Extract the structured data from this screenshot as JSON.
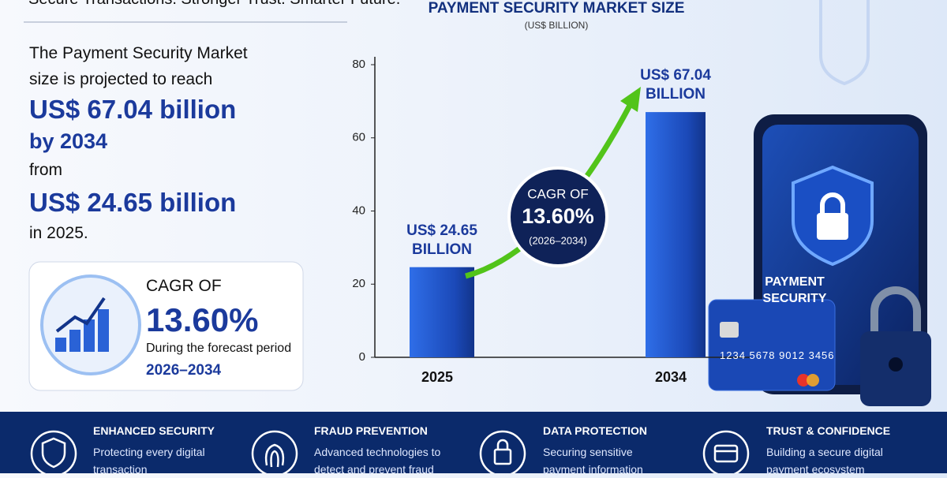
{
  "header": {
    "tagline": "Secure Transactions. Stronger Trust. Smarter Future."
  },
  "summary": {
    "intro": "The Payment Security Market size is projected to reach",
    "target": "US$ 67.04 billion",
    "target_year": "by 2034",
    "from": "from",
    "base": "US$ 24.65 billion",
    "base_year": "in 2025."
  },
  "cagr_box": {
    "label": "CAGR OF",
    "value": "13.60%",
    "note": "During the forecast period",
    "period": "2026–2034"
  },
  "chart_data": {
    "type": "bar",
    "title": "PAYMENT SECURITY MARKET SIZE",
    "subtitle": "(US$ BILLION)",
    "categories": [
      "2025",
      "2034"
    ],
    "values": [
      24.65,
      67.04
    ],
    "value_labels": [
      "US$ 24.65 BILLION",
      "US$ 67.04 BILLION"
    ],
    "color": "#1f4fc4",
    "ylim": [
      0,
      80
    ],
    "yticks": [
      0,
      20,
      40,
      60,
      80
    ],
    "grid": false,
    "annotation": {
      "label": "CAGR OF",
      "value": "13.60%",
      "period": "(2026–2034)"
    }
  },
  "illustration": {
    "phone_text": "PAYMENT SECURITY",
    "card_number": "1234 5678 9012 3456"
  },
  "features": [
    {
      "title": "ENHANCED SECURITY",
      "text": "Protecting every digital transaction"
    },
    {
      "title": "FRAUD PREVENTION",
      "text": "Advanced technologies to detect and prevent fraud"
    },
    {
      "title": "DATA PROTECTION",
      "text": "Securing sensitive payment information"
    },
    {
      "title": "TRUST & CONFIDENCE",
      "text": "Building a secure digital payment ecosystem"
    }
  ]
}
